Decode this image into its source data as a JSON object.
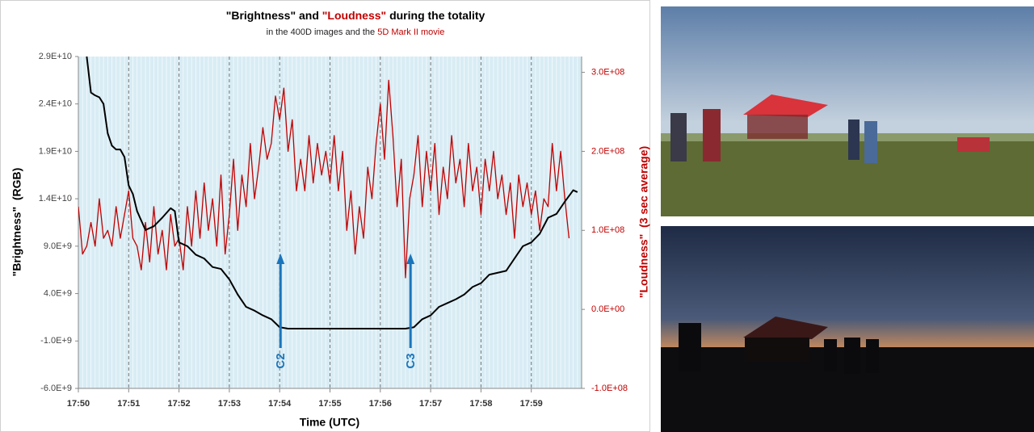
{
  "chart_data": {
    "type": "line",
    "title": [
      "\"Brightness\"",
      " and ",
      "\"Loudness\"",
      " during the totality"
    ],
    "subtitle": [
      "in the 400D images and the ",
      "5D Mark II movie"
    ],
    "x_label": "Time (UTC)",
    "y_label": "\"Brightness\"  (RGB)",
    "y2_label": "\"Loudness\"  (3 sec average)",
    "xlim": [
      "17:50:00",
      "18:00:00"
    ],
    "xticks": [
      "17:50",
      "17:51",
      "17:52",
      "17:53",
      "17:54",
      "17:55",
      "17:56",
      "17:57",
      "17:58",
      "17:59"
    ],
    "ylim": [
      -6000000000.0,
      29000000000.0
    ],
    "yticks": [
      {
        "value": 29000000000.0,
        "label": "2.9E+10"
      },
      {
        "value": 24000000000.0,
        "label": "2.4E+10"
      },
      {
        "value": 19000000000.0,
        "label": "1.9E+10"
      },
      {
        "value": 14000000000.0,
        "label": "1.4E+10"
      },
      {
        "value": 9000000000.0,
        "label": "9.0E+9"
      },
      {
        "value": 4000000000.0,
        "label": "4.0E+9"
      },
      {
        "value": -1000000000.0,
        "label": "-1.0E+9"
      },
      {
        "value": -6000000000.0,
        "label": "-6.0E+9"
      }
    ],
    "y2lim": [
      -100000000.0,
      320000000.0
    ],
    "y2ticks": [
      {
        "value": 300000000.0,
        "label": "3.0E+08"
      },
      {
        "value": 200000000.0,
        "label": "2.0E+08"
      },
      {
        "value": 100000000.0,
        "label": "1.0E+08"
      },
      {
        "value": 0,
        "label": "0.0E+00"
      },
      {
        "value": -100000000.0,
        "label": "-1.0E+08"
      }
    ],
    "grid": true,
    "series": [
      {
        "color": "#000000",
        "x": [
          "17:50:10",
          "17:50:15",
          "17:50:20",
          "17:50:25",
          "17:50:30",
          "17:50:35",
          "17:50:40",
          "17:50:45",
          "17:50:50",
          "17:50:55",
          "17:51:00",
          "17:51:05",
          "17:51:10",
          "17:51:20",
          "17:51:30",
          "17:51:40",
          "17:51:50",
          "17:51:55",
          "17:52:00",
          "17:52:10",
          "17:52:20",
          "17:52:30",
          "17:52:40",
          "17:52:50",
          "17:53:00",
          "17:53:10",
          "17:53:20",
          "17:53:30",
          "17:53:40",
          "17:53:50",
          "17:54:00",
          "17:54:10",
          "17:56:30",
          "17:56:40",
          "17:56:50",
          "17:57:00",
          "17:57:10",
          "17:57:20",
          "17:57:30",
          "17:57:40",
          "17:57:50",
          "17:58:00",
          "17:58:10",
          "17:58:20",
          "17:58:30",
          "17:58:40",
          "17:58:50",
          "17:59:00",
          "17:59:10",
          "17:59:20",
          "17:59:30",
          "17:59:40",
          "17:59:50",
          "17:59:55"
        ],
        "values": [
          29000000000.0,
          25200000000.0,
          24900000000.0,
          24700000000.0,
          24000000000.0,
          20900000000.0,
          19600000000.0,
          19200000000.0,
          19200000000.0,
          18400000000.0,
          15400000000.0,
          14500000000.0,
          12700000000.0,
          10700000000.0,
          11100000000.0,
          12000000000.0,
          13000000000.0,
          12700000000.0,
          9400000000.0,
          9000000000.0,
          8100000000.0,
          7700000000.0,
          6800000000.0,
          6600000000.0,
          5500000000.0,
          3900000000.0,
          2600000000.0,
          2200000000.0,
          1700000000.0,
          1300000000.0,
          450000000.0,
          300000000.0,
          300000000.0,
          450000000.0,
          1300000000.0,
          1700000000.0,
          2600000000.0,
          3000000000.0,
          3400000000.0,
          3900000000.0,
          4700000000.0,
          5100000000.0,
          6000000000.0,
          6200000000.0,
          6400000000.0,
          7700000000.0,
          9000000000.0,
          9400000000.0,
          10300000000.0,
          12000000000.0,
          12400000000.0,
          13700000000.0,
          14900000000.0,
          14700000000.0
        ]
      },
      {
        "color": "#c00000",
        "axis": "y2",
        "x": [
          "17:50:00",
          "17:50:05",
          "17:50:10",
          "17:50:15",
          "17:50:20",
          "17:50:25",
          "17:50:30",
          "17:50:35",
          "17:50:40",
          "17:50:45",
          "17:50:50",
          "17:50:55",
          "17:51:00",
          "17:51:05",
          "17:51:10",
          "17:51:15",
          "17:51:20",
          "17:51:25",
          "17:51:30",
          "17:51:35",
          "17:51:40",
          "17:51:45",
          "17:51:50",
          "17:51:55",
          "17:52:00",
          "17:52:05",
          "17:52:10",
          "17:52:15",
          "17:52:20",
          "17:52:25",
          "17:52:30",
          "17:52:35",
          "17:52:40",
          "17:52:45",
          "17:52:50",
          "17:52:55",
          "17:53:00",
          "17:53:05",
          "17:53:10",
          "17:53:15",
          "17:53:20",
          "17:53:25",
          "17:53:30",
          "17:53:35",
          "17:53:40",
          "17:53:45",
          "17:53:50",
          "17:53:55",
          "17:54:00",
          "17:54:05",
          "17:54:10",
          "17:54:15",
          "17:54:20",
          "17:54:25",
          "17:54:30",
          "17:54:35",
          "17:54:40",
          "17:54:45",
          "17:54:50",
          "17:54:55",
          "17:55:00",
          "17:55:05",
          "17:55:10",
          "17:55:15",
          "17:55:20",
          "17:55:25",
          "17:55:30",
          "17:55:35",
          "17:55:40",
          "17:55:45",
          "17:55:50",
          "17:55:55",
          "17:56:00",
          "17:56:05",
          "17:56:10",
          "17:56:15",
          "17:56:20",
          "17:56:25",
          "17:56:30",
          "17:56:35",
          "17:56:40",
          "17:56:45",
          "17:56:50",
          "17:56:55",
          "17:57:00",
          "17:57:05",
          "17:57:10",
          "17:57:15",
          "17:57:20",
          "17:57:25",
          "17:57:30",
          "17:57:35",
          "17:57:40",
          "17:57:45",
          "17:57:50",
          "17:57:55",
          "17:58:00",
          "17:58:05",
          "17:58:10",
          "17:58:15",
          "17:58:20",
          "17:58:25",
          "17:58:30",
          "17:58:35",
          "17:58:40",
          "17:58:45",
          "17:58:50",
          "17:58:55",
          "17:59:00",
          "17:59:05",
          "17:59:10",
          "17:59:15",
          "17:59:20",
          "17:59:25",
          "17:59:30",
          "17:59:35",
          "17:59:40",
          "17:59:45"
        ],
        "values": [
          130000000.0,
          70000000.0,
          80000000.0,
          110000000.0,
          80000000.0,
          140000000.0,
          90000000.0,
          100000000.0,
          80000000.0,
          130000000.0,
          90000000.0,
          120000000.0,
          150000000.0,
          90000000.0,
          80000000.0,
          50000000.0,
          110000000.0,
          60000000.0,
          130000000.0,
          70000000.0,
          100000000.0,
          50000000.0,
          120000000.0,
          80000000.0,
          90000000.0,
          50000000.0,
          130000000.0,
          80000000.0,
          150000000.0,
          90000000.0,
          160000000.0,
          100000000.0,
          140000000.0,
          80000000.0,
          170000000.0,
          70000000.0,
          120000000.0,
          190000000.0,
          100000000.0,
          170000000.0,
          130000000.0,
          210000000.0,
          140000000.0,
          180000000.0,
          230000000.0,
          190000000.0,
          210000000.0,
          270000000.0,
          240000000.0,
          280000000.0,
          200000000.0,
          240000000.0,
          150000000.0,
          190000000.0,
          150000000.0,
          220000000.0,
          160000000.0,
          210000000.0,
          170000000.0,
          200000000.0,
          160000000.0,
          220000000.0,
          150000000.0,
          200000000.0,
          100000000.0,
          150000000.0,
          70000000.0,
          130000000.0,
          90000000.0,
          180000000.0,
          140000000.0,
          210000000.0,
          260000000.0,
          190000000.0,
          290000000.0,
          220000000.0,
          130000000.0,
          190000000.0,
          40000000.0,
          140000000.0,
          170000000.0,
          220000000.0,
          130000000.0,
          200000000.0,
          150000000.0,
          210000000.0,
          120000000.0,
          180000000.0,
          140000000.0,
          220000000.0,
          160000000.0,
          190000000.0,
          130000000.0,
          210000000.0,
          150000000.0,
          180000000.0,
          120000000.0,
          190000000.0,
          150000000.0,
          200000000.0,
          140000000.0,
          170000000.0,
          120000000.0,
          160000000.0,
          90000000.0,
          170000000.0,
          130000000.0,
          160000000.0,
          120000000.0,
          150000000.0,
          100000000.0,
          140000000.0,
          130000000.0,
          210000000.0,
          150000000.0,
          200000000.0,
          140000000.0,
          90000000.0
        ]
      }
    ],
    "annotations": [
      {
        "text": "C2",
        "x": "17:54:01",
        "color": "#1b75bc"
      },
      {
        "text": "C3",
        "x": "17:56:36",
        "color": "#1b75bc"
      }
    ]
  }
}
